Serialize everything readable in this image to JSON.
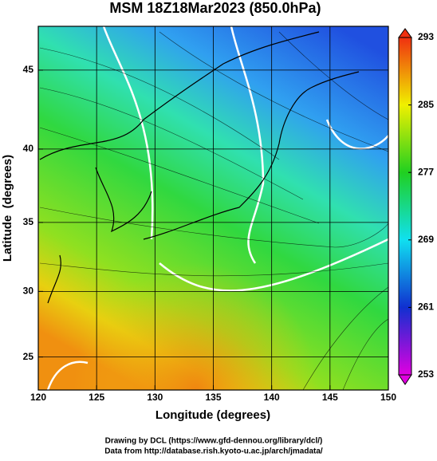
{
  "chart_data": {
    "type": "map",
    "title": "MSM 18Z18Mar2023 (850.0hPa)",
    "xlabel": "Longitude (degrees)",
    "ylabel": "Latitude  (degrees)",
    "projection": "mercator",
    "xlim": [
      120,
      150
    ],
    "xticks": [
      120,
      125,
      130,
      135,
      140,
      145,
      150
    ],
    "ylim": [
      22.4,
      47.6
    ],
    "yticks": [
      25,
      30,
      35,
      40,
      45
    ],
    "grid": true,
    "colorbar": {
      "lim": [
        253,
        293
      ],
      "ticks": [
        253,
        261,
        269,
        277,
        285,
        293
      ],
      "colors": [
        "#e000e0",
        "#1030d0",
        "#10e0f0",
        "#20d020",
        "#f0f000",
        "#f03010"
      ]
    }
  },
  "credits": [
    "Drawing by DCL (https://www.gfd-dennou.org/library/dcl/)",
    "Data from http://database.rish.kyoto-u.ac.jp/arch/jmadata/"
  ]
}
